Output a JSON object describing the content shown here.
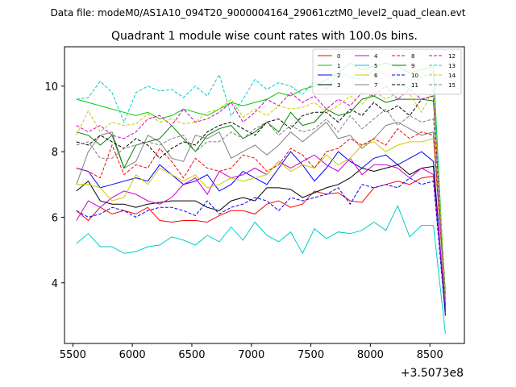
{
  "chart_data": {
    "type": "line",
    "suptitle": "Data file: modeM0/AS1A10_094T20_9000004164_29061cztM0_level2_quad_clean.evt",
    "title": "Quadrant 1 module wise count rates with 100.0s bins.",
    "xlabel": "",
    "ylabel": "",
    "x_offset_label": "+3.5073e8",
    "xlim": [
      5430,
      8790
    ],
    "ylim": [
      2.15,
      11.2
    ],
    "x_ticks": [
      5500,
      6000,
      6500,
      7000,
      7500,
      8000,
      8500
    ],
    "y_ticks": [
      4,
      6,
      8,
      10
    ],
    "legend_position": "top-right",
    "x": [
      5530,
      5630,
      5730,
      5830,
      5930,
      6030,
      6130,
      6230,
      6330,
      6430,
      6530,
      6630,
      6730,
      6830,
      6930,
      7030,
      7130,
      7230,
      7330,
      7430,
      7530,
      7630,
      7730,
      7830,
      7930,
      8030,
      8130,
      8230,
      8330,
      8430,
      8530,
      8630
    ],
    "series": [
      {
        "name": "0",
        "color": "#ff0000",
        "dash": "solid",
        "values": [
          6.2,
          5.9,
          6.3,
          6.1,
          6.2,
          6.1,
          6.3,
          5.9,
          5.85,
          5.9,
          5.9,
          5.85,
          6.05,
          6.2,
          6.2,
          6.1,
          6.4,
          6.5,
          6.3,
          6.4,
          6.8,
          6.7,
          6.75,
          6.5,
          6.45,
          6.9,
          7.0,
          7.1,
          7.0,
          7.2,
          7.25,
          3.2
        ]
      },
      {
        "name": "1",
        "color": "#00cc00",
        "dash": "solid",
        "values": [
          9.6,
          9.5,
          9.4,
          9.3,
          9.2,
          9.1,
          9.2,
          9.0,
          9.1,
          9.3,
          9.2,
          9.1,
          9.3,
          9.5,
          9.4,
          9.5,
          9.6,
          9.8,
          9.7,
          9.9,
          10.0,
          10.2,
          10.4,
          10.7,
          10.5,
          10.6,
          10.7,
          10.6,
          10.4,
          10.5,
          10.6,
          3.3
        ]
      },
      {
        "name": "2",
        "color": "#0000ff",
        "dash": "solid",
        "values": [
          7.5,
          7.4,
          6.9,
          7.0,
          7.1,
          7.2,
          7.1,
          7.6,
          7.3,
          7.0,
          7.1,
          7.3,
          6.8,
          7.0,
          7.4,
          7.2,
          7.0,
          7.5,
          8.0,
          7.6,
          7.1,
          7.5,
          8.0,
          7.7,
          7.5,
          7.8,
          7.9,
          7.6,
          7.8,
          8.0,
          7.7,
          3.1
        ]
      },
      {
        "name": "3",
        "color": "#000000",
        "dash": "solid",
        "values": [
          6.8,
          7.1,
          6.5,
          6.4,
          6.4,
          6.3,
          6.4,
          6.45,
          6.5,
          6.5,
          6.5,
          6.3,
          6.2,
          6.5,
          6.6,
          6.5,
          6.9,
          6.9,
          6.85,
          6.6,
          6.75,
          6.9,
          7.0,
          7.2,
          7.5,
          7.4,
          7.5,
          7.6,
          7.3,
          7.5,
          7.55,
          3.0
        ]
      },
      {
        "name": "4",
        "color": "#cc00cc",
        "dash": "solid",
        "values": [
          5.9,
          6.5,
          6.3,
          6.6,
          6.8,
          6.7,
          6.5,
          6.4,
          6.6,
          7.0,
          7.2,
          6.7,
          7.4,
          7.2,
          7.3,
          7.5,
          7.3,
          7.7,
          7.5,
          7.7,
          7.9,
          7.6,
          7.4,
          7.8,
          7.3,
          7.6,
          7.6,
          7.5,
          7.2,
          7.5,
          7.3,
          3.3
        ]
      },
      {
        "name": "5",
        "color": "#00cccc",
        "dash": "solid",
        "values": [
          5.2,
          5.5,
          5.1,
          5.1,
          4.9,
          4.95,
          5.1,
          5.15,
          5.4,
          5.3,
          5.15,
          5.45,
          5.25,
          5.7,
          5.3,
          5.85,
          5.45,
          5.25,
          5.55,
          4.9,
          5.65,
          5.35,
          5.55,
          5.5,
          5.6,
          5.85,
          5.6,
          6.35,
          5.4,
          5.75,
          5.75,
          2.45
        ]
      },
      {
        "name": "6",
        "color": "#cccc00",
        "dash": "solid",
        "values": [
          7.0,
          7.0,
          6.9,
          6.5,
          6.6,
          7.3,
          7.0,
          7.5,
          7.3,
          7.1,
          7.3,
          6.9,
          7.0,
          7.2,
          7.1,
          7.2,
          7.3,
          7.7,
          7.4,
          7.6,
          7.5,
          7.9,
          7.6,
          7.8,
          8.2,
          8.3,
          8.0,
          8.2,
          8.3,
          8.3,
          8.4,
          3.4
        ]
      },
      {
        "name": "7",
        "color": "#808080",
        "dash": "solid",
        "values": [
          7.0,
          8.0,
          8.5,
          8.6,
          7.5,
          7.7,
          8.5,
          8.3,
          7.8,
          7.7,
          8.5,
          8.4,
          8.6,
          7.8,
          8.0,
          8.2,
          7.9,
          8.2,
          8.6,
          8.3,
          8.6,
          8.9,
          8.4,
          8.5,
          8.1,
          8.4,
          8.8,
          8.9,
          8.7,
          8.5,
          8.6,
          3.5
        ]
      },
      {
        "name": "8",
        "color": "#ff0000",
        "dash": "dashed",
        "values": [
          7.5,
          7.4,
          7.2,
          8.2,
          7.3,
          7.6,
          7.5,
          8.1,
          7.7,
          7.2,
          7.8,
          7.5,
          7.4,
          7.5,
          7.9,
          7.8,
          7.4,
          7.6,
          8.1,
          7.9,
          7.5,
          8.0,
          8.1,
          8.4,
          8.2,
          8.4,
          8.2,
          8.7,
          8.4,
          8.6,
          8.5,
          3.6
        ]
      },
      {
        "name": "9",
        "color": "#008000",
        "dash": "solid",
        "values": [
          8.6,
          8.5,
          8.2,
          8.5,
          7.5,
          8.2,
          8.3,
          8.4,
          8.8,
          8.4,
          8.0,
          8.5,
          8.7,
          8.8,
          8.4,
          8.6,
          8.9,
          8.6,
          9.2,
          8.8,
          8.9,
          9.3,
          9.1,
          9.2,
          9.6,
          9.7,
          9.5,
          9.6,
          9.6,
          9.6,
          9.55,
          3.7
        ]
      },
      {
        "name": "10",
        "color": "#0000ff",
        "dash": "dashed",
        "values": [
          6.2,
          6.0,
          6.1,
          6.3,
          6.2,
          6.0,
          6.2,
          6.3,
          6.3,
          6.2,
          6.05,
          6.5,
          6.1,
          6.3,
          6.4,
          6.6,
          6.5,
          6.2,
          6.6,
          6.5,
          6.6,
          6.7,
          6.9,
          6.4,
          7.0,
          6.9,
          7.0,
          6.9,
          7.2,
          7.0,
          7.1,
          3.0
        ]
      },
      {
        "name": "11",
        "color": "#000000",
        "dash": "dashed",
        "values": [
          8.3,
          8.2,
          8.5,
          8.3,
          8.1,
          8.4,
          8.2,
          7.8,
          8.1,
          8.3,
          8.2,
          8.6,
          8.8,
          8.9,
          8.7,
          8.5,
          8.9,
          9.0,
          8.7,
          9.1,
          9.2,
          9.2,
          8.9,
          9.3,
          9.1,
          9.5,
          9.2,
          9.4,
          9.1,
          9.6,
          9.7,
          3.4
        ]
      },
      {
        "name": "12",
        "color": "#cc00cc",
        "dash": "dashed",
        "values": [
          8.8,
          8.6,
          8.8,
          8.5,
          8.4,
          8.6,
          9.0,
          9.1,
          8.8,
          9.3,
          8.9,
          9.0,
          9.2,
          9.5,
          8.9,
          9.2,
          9.6,
          9.4,
          9.8,
          9.5,
          9.7,
          9.3,
          9.6,
          9.4,
          9.8,
          9.7,
          10.0,
          9.6,
          9.9,
          9.6,
          9.7,
          3.3
        ]
      },
      {
        "name": "13",
        "color": "#00cccc",
        "dash": "dashed",
        "values": [
          9.6,
          9.65,
          10.15,
          9.8,
          8.9,
          9.8,
          10.0,
          9.85,
          9.9,
          9.65,
          10.0,
          9.7,
          10.35,
          9.1,
          9.6,
          10.2,
          9.9,
          10.1,
          10.0,
          9.75,
          10.15,
          9.9,
          10.4,
          10.3,
          10.2,
          10.5,
          10.35,
          10.2,
          9.9,
          10.3,
          10.4,
          3.4
        ]
      },
      {
        "name": "14",
        "color": "#cccc00",
        "dash": "dashed",
        "values": [
          8.5,
          9.25,
          8.6,
          8.9,
          8.8,
          8.85,
          9.15,
          8.9,
          9.0,
          8.85,
          8.9,
          9.2,
          9.3,
          9.6,
          9.05,
          9.3,
          9.1,
          9.4,
          9.3,
          9.35,
          9.5,
          9.2,
          9.4,
          9.7,
          9.45,
          9.85,
          9.6,
          9.8,
          9.75,
          9.2,
          9.9,
          3.6
        ]
      },
      {
        "name": "15",
        "color": "#808080",
        "dash": "dashed",
        "values": [
          8.2,
          8.3,
          7.8,
          7.8,
          8.1,
          8.2,
          8.3,
          8.2,
          8.4,
          8.5,
          8.0,
          8.3,
          8.3,
          8.6,
          8.4,
          8.7,
          8.9,
          8.5,
          8.8,
          8.6,
          8.7,
          9.0,
          8.6,
          9.1,
          8.7,
          9.0,
          9.3,
          8.8,
          9.1,
          8.9,
          9.0,
          3.5
        ]
      }
    ]
  }
}
